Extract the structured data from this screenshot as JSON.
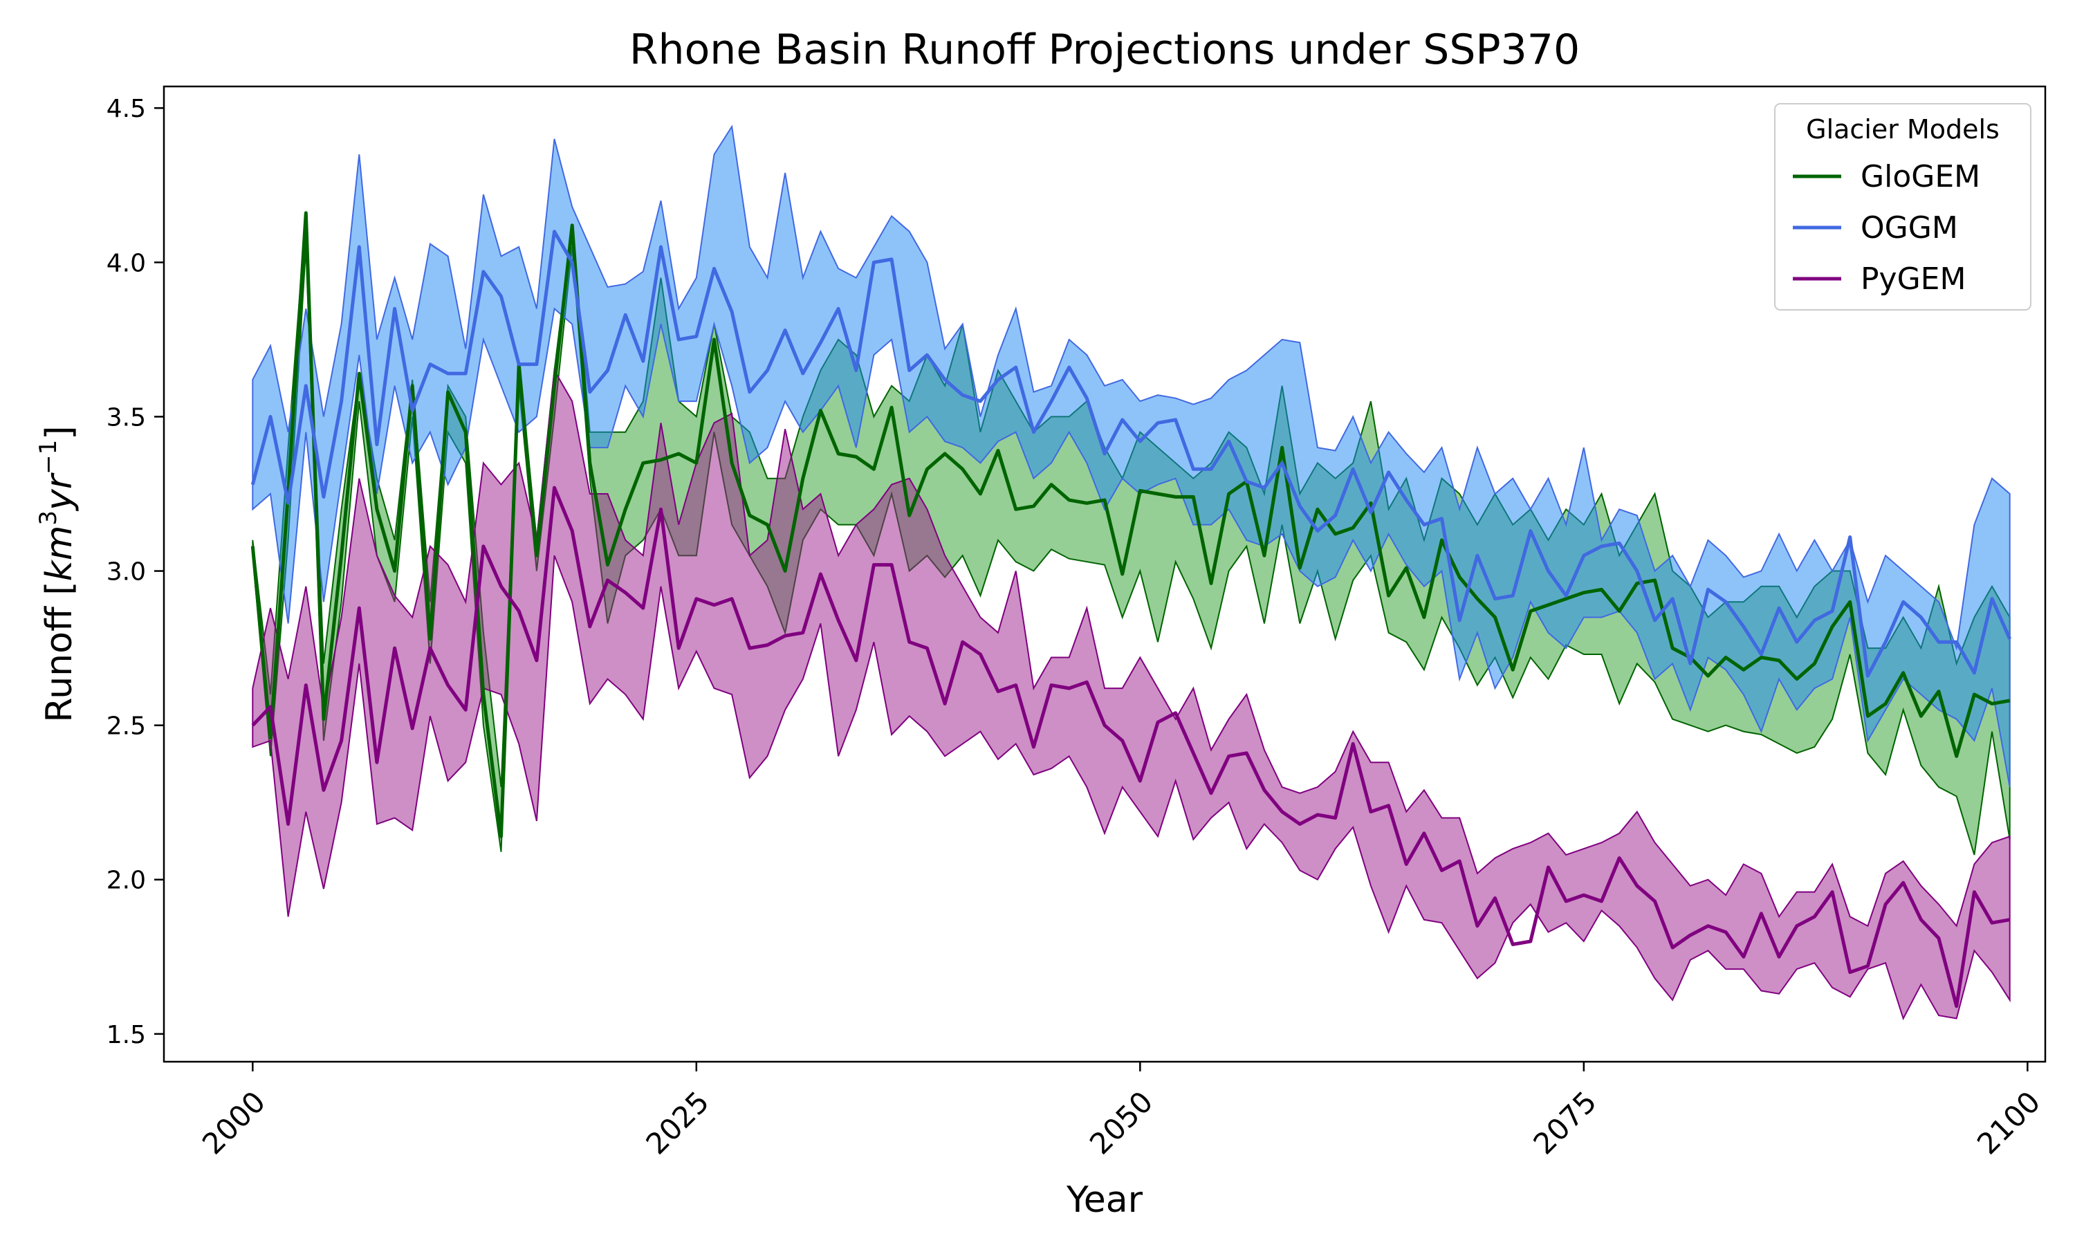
{
  "chart_data": {
    "type": "line",
    "title": "Rhone Basin Runoff Projections under SSP370",
    "xlabel": "Year",
    "ylabel_main": "Runoff [",
    "ylabel_unit_base": "km",
    "ylabel_unit_sup1": "3",
    "ylabel_unit_mid": "yr",
    "ylabel_unit_sup2": "−1",
    "ylabel_close": "]",
    "xlim": [
      1995,
      2101
    ],
    "ylim": [
      1.41,
      4.57
    ],
    "x_ticks": [
      2000,
      2025,
      2050,
      2075,
      2100
    ],
    "y_ticks": [
      1.5,
      2.0,
      2.5,
      3.0,
      3.5,
      4.0,
      4.5
    ],
    "y_tick_labels": [
      "1.5",
      "2.0",
      "2.5",
      "3.0",
      "3.5",
      "4.0",
      "4.5"
    ],
    "legend": {
      "title": "Glacier Models",
      "placement": "top-right"
    },
    "series": [
      {
        "name": "GloGEM",
        "line_color": "#006400",
        "fill_color": "#2ca02c",
        "x_start": 2000,
        "mean": [
          3.08,
          2.46,
          3.25,
          4.16,
          2.52,
          3.05,
          3.64,
          3.2,
          3.0,
          3.6,
          2.78,
          3.58,
          3.45,
          2.6,
          2.14,
          3.67,
          3.05,
          3.6,
          4.12,
          3.35,
          3.02,
          3.2,
          3.35,
          3.36,
          3.38,
          3.35,
          3.75,
          3.35,
          3.18,
          3.15,
          3.0,
          3.3,
          3.52,
          3.38,
          3.37,
          3.33,
          3.53,
          3.18,
          3.33,
          3.38,
          3.33,
          3.25,
          3.39,
          3.2,
          3.21,
          3.28,
          3.23,
          3.22,
          3.23,
          2.99,
          3.26,
          3.25,
          3.24,
          3.24,
          2.96,
          3.25,
          3.29,
          3.05,
          3.4,
          3.01,
          3.2,
          3.12,
          3.14,
          3.22,
          2.92,
          3.01,
          2.85,
          3.1,
          2.98,
          2.91,
          2.85,
          2.68,
          2.87,
          2.89,
          2.91,
          2.93,
          2.94,
          2.87,
          2.96,
          2.97,
          2.75,
          2.72,
          2.66,
          2.72,
          2.68,
          2.72,
          2.71,
          2.65,
          2.7,
          2.82,
          2.9,
          2.53,
          2.57,
          2.67,
          2.53,
          2.61,
          2.4,
          2.6,
          2.57,
          2.58
        ],
        "upper": [
          3.1,
          2.6,
          3.4,
          4.16,
          2.7,
          3.2,
          3.64,
          3.3,
          3.1,
          3.62,
          2.9,
          3.6,
          3.5,
          2.8,
          2.3,
          3.68,
          3.1,
          3.65,
          4.12,
          3.45,
          3.45,
          3.45,
          3.55,
          3.95,
          3.55,
          3.5,
          3.8,
          3.5,
          3.45,
          3.3,
          3.3,
          3.5,
          3.65,
          3.75,
          3.7,
          3.5,
          3.6,
          3.55,
          3.7,
          3.6,
          3.8,
          3.45,
          3.65,
          3.55,
          3.45,
          3.5,
          3.5,
          3.55,
          3.4,
          3.3,
          3.45,
          3.4,
          3.35,
          3.3,
          3.35,
          3.45,
          3.4,
          3.25,
          3.6,
          3.25,
          3.35,
          3.3,
          3.35,
          3.55,
          3.2,
          3.3,
          3.1,
          3.3,
          3.25,
          3.15,
          3.25,
          3.15,
          3.2,
          3.1,
          3.2,
          3.15,
          3.25,
          3.05,
          3.15,
          3.25,
          3.0,
          2.95,
          2.85,
          2.9,
          2.9,
          2.95,
          2.95,
          2.85,
          2.95,
          3.0,
          3.0,
          2.75,
          2.75,
          2.85,
          2.75,
          2.95,
          2.7,
          2.85,
          2.95,
          2.85
        ],
        "lower": [
          3.05,
          2.4,
          3.1,
          4.05,
          2.45,
          2.9,
          3.55,
          3.05,
          2.9,
          3.5,
          2.7,
          3.45,
          3.35,
          2.5,
          2.09,
          3.6,
          3.0,
          3.5,
          4.05,
          3.3,
          2.83,
          3.05,
          3.1,
          3.2,
          3.05,
          3.05,
          3.45,
          3.15,
          3.05,
          2.95,
          2.8,
          3.1,
          3.2,
          3.15,
          3.15,
          3.05,
          3.25,
          3.0,
          3.05,
          2.98,
          3.05,
          2.92,
          3.1,
          3.03,
          3.0,
          3.07,
          3.04,
          3.03,
          3.02,
          2.85,
          3.0,
          2.77,
          3.03,
          2.91,
          2.75,
          3.0,
          3.08,
          2.83,
          3.15,
          2.83,
          3.0,
          2.78,
          2.97,
          3.05,
          2.8,
          2.77,
          2.68,
          2.85,
          2.75,
          2.63,
          2.72,
          2.59,
          2.72,
          2.65,
          2.76,
          2.73,
          2.73,
          2.57,
          2.7,
          2.64,
          2.52,
          2.5,
          2.48,
          2.5,
          2.48,
          2.47,
          2.44,
          2.41,
          2.43,
          2.52,
          2.73,
          2.41,
          2.34,
          2.55,
          2.37,
          2.3,
          2.27,
          2.08,
          2.48,
          2.13
        ]
      },
      {
        "name": "OGGM",
        "line_color": "#4169e1",
        "fill_color": "#1e88f5",
        "x_start": 2000,
        "mean": [
          3.28,
          3.5,
          3.22,
          3.6,
          3.24,
          3.55,
          4.05,
          3.41,
          3.85,
          3.52,
          3.67,
          3.64,
          3.64,
          3.97,
          3.89,
          3.67,
          3.67,
          4.1,
          4.0,
          3.58,
          3.65,
          3.83,
          3.68,
          4.05,
          3.75,
          3.76,
          3.98,
          3.84,
          3.58,
          3.65,
          3.78,
          3.64,
          3.74,
          3.85,
          3.65,
          4.0,
          4.01,
          3.65,
          3.7,
          3.62,
          3.57,
          3.55,
          3.62,
          3.66,
          3.45,
          3.55,
          3.66,
          3.56,
          3.38,
          3.49,
          3.42,
          3.48,
          3.49,
          3.33,
          3.33,
          3.42,
          3.29,
          3.27,
          3.35,
          3.21,
          3.13,
          3.18,
          3.33,
          3.19,
          3.32,
          3.23,
          3.15,
          3.17,
          2.84,
          3.05,
          2.91,
          2.92,
          3.13,
          3.0,
          2.92,
          3.05,
          3.08,
          3.09,
          3.0,
          2.84,
          2.91,
          2.7,
          2.94,
          2.9,
          2.82,
          2.73,
          2.88,
          2.77,
          2.84,
          2.87,
          3.11,
          2.66,
          2.77,
          2.9,
          2.85,
          2.77,
          2.77,
          2.67,
          2.91,
          2.78
        ],
        "upper": [
          3.62,
          3.73,
          3.45,
          3.85,
          3.5,
          3.8,
          4.35,
          3.75,
          3.95,
          3.75,
          4.06,
          4.02,
          3.72,
          4.22,
          4.02,
          4.05,
          3.85,
          4.4,
          4.18,
          4.05,
          3.92,
          3.93,
          3.97,
          4.2,
          3.85,
          3.95,
          4.35,
          4.44,
          4.05,
          3.95,
          4.29,
          3.95,
          4.1,
          3.98,
          3.95,
          4.05,
          4.15,
          4.1,
          4.0,
          3.72,
          3.8,
          3.5,
          3.7,
          3.85,
          3.58,
          3.6,
          3.75,
          3.7,
          3.6,
          3.62,
          3.55,
          3.57,
          3.56,
          3.54,
          3.56,
          3.62,
          3.65,
          3.7,
          3.75,
          3.74,
          3.4,
          3.39,
          3.5,
          3.35,
          3.45,
          3.38,
          3.32,
          3.4,
          3.2,
          3.4,
          3.25,
          3.3,
          3.2,
          3.3,
          3.15,
          3.4,
          3.1,
          3.2,
          3.18,
          3.0,
          3.05,
          2.95,
          3.1,
          3.05,
          2.98,
          3.0,
          3.12,
          3.0,
          3.1,
          3.0,
          3.1,
          2.9,
          3.05,
          3.0,
          2.95,
          2.9,
          2.75,
          3.15,
          3.3,
          3.25
        ],
        "lower": [
          3.2,
          3.25,
          2.83,
          3.45,
          2.9,
          3.3,
          3.7,
          3.25,
          3.6,
          3.35,
          3.45,
          3.28,
          3.4,
          3.75,
          3.6,
          3.45,
          3.5,
          3.85,
          3.8,
          3.4,
          3.4,
          3.6,
          3.5,
          3.8,
          3.55,
          3.55,
          3.8,
          3.6,
          3.35,
          3.4,
          3.55,
          3.45,
          3.52,
          3.6,
          3.4,
          3.7,
          3.75,
          3.45,
          3.5,
          3.42,
          3.4,
          3.35,
          3.42,
          3.45,
          3.3,
          3.35,
          3.45,
          3.35,
          3.2,
          3.3,
          3.25,
          3.28,
          3.3,
          3.15,
          3.15,
          3.2,
          3.1,
          3.08,
          3.12,
          3.0,
          2.95,
          2.98,
          3.1,
          3.0,
          3.12,
          3.02,
          2.95,
          3.0,
          2.65,
          2.8,
          2.62,
          2.72,
          2.9,
          2.8,
          2.75,
          2.85,
          2.85,
          2.87,
          2.8,
          2.65,
          2.7,
          2.55,
          2.72,
          2.68,
          2.6,
          2.48,
          2.65,
          2.55,
          2.62,
          2.65,
          2.85,
          2.45,
          2.55,
          2.65,
          2.6,
          2.55,
          2.52,
          2.45,
          2.62,
          2.3
        ]
      },
      {
        "name": "PyGEM",
        "line_color": "#800080",
        "fill_color": "#9b1f8c",
        "x_start": 2000,
        "mean": [
          2.5,
          2.56,
          2.18,
          2.63,
          2.29,
          2.45,
          2.88,
          2.38,
          2.75,
          2.49,
          2.75,
          2.63,
          2.55,
          3.08,
          2.95,
          2.87,
          2.71,
          3.27,
          3.13,
          2.82,
          2.97,
          2.93,
          2.88,
          3.2,
          2.75,
          2.91,
          2.89,
          2.91,
          2.75,
          2.76,
          2.79,
          2.8,
          2.99,
          2.84,
          2.71,
          3.02,
          3.02,
          2.77,
          2.75,
          2.57,
          2.77,
          2.73,
          2.61,
          2.63,
          2.43,
          2.63,
          2.62,
          2.64,
          2.5,
          2.45,
          2.32,
          2.51,
          2.54,
          2.41,
          2.28,
          2.4,
          2.41,
          2.29,
          2.22,
          2.18,
          2.21,
          2.2,
          2.44,
          2.22,
          2.24,
          2.05,
          2.15,
          2.03,
          2.06,
          1.85,
          1.94,
          1.79,
          1.8,
          2.04,
          1.93,
          1.95,
          1.93,
          2.07,
          1.98,
          1.93,
          1.78,
          1.82,
          1.85,
          1.83,
          1.75,
          1.89,
          1.75,
          1.85,
          1.88,
          1.96,
          1.7,
          1.72,
          1.92,
          1.99,
          1.87,
          1.81,
          1.59,
          1.96,
          1.86,
          1.87
        ],
        "upper": [
          2.62,
          2.88,
          2.65,
          2.95,
          2.55,
          2.85,
          3.3,
          3.05,
          2.92,
          2.85,
          3.08,
          3.02,
          2.9,
          3.35,
          3.28,
          3.35,
          3.1,
          3.65,
          3.55,
          3.25,
          3.25,
          3.1,
          3.05,
          3.48,
          3.15,
          3.35,
          3.48,
          3.51,
          3.05,
          3.1,
          3.46,
          3.2,
          3.25,
          3.05,
          3.15,
          3.2,
          3.28,
          3.3,
          3.2,
          3.05,
          2.95,
          2.85,
          2.8,
          3.0,
          2.62,
          2.72,
          2.72,
          2.88,
          2.62,
          2.62,
          2.72,
          2.62,
          2.52,
          2.62,
          2.42,
          2.52,
          2.6,
          2.42,
          2.3,
          2.28,
          2.3,
          2.35,
          2.48,
          2.38,
          2.38,
          2.22,
          2.29,
          2.2,
          2.2,
          2.02,
          2.07,
          2.1,
          2.12,
          2.15,
          2.08,
          2.1,
          2.12,
          2.15,
          2.22,
          2.12,
          2.05,
          1.98,
          2.0,
          1.95,
          2.05,
          2.02,
          1.88,
          1.96,
          1.96,
          2.05,
          1.88,
          1.85,
          2.02,
          2.06,
          1.98,
          1.92,
          1.85,
          2.05,
          2.12,
          2.14
        ],
        "lower": [
          2.43,
          2.45,
          1.88,
          2.22,
          1.97,
          2.25,
          2.7,
          2.18,
          2.2,
          2.16,
          2.53,
          2.32,
          2.38,
          2.62,
          2.6,
          2.44,
          2.19,
          3.05,
          2.9,
          2.57,
          2.65,
          2.6,
          2.52,
          2.95,
          2.62,
          2.74,
          2.62,
          2.6,
          2.33,
          2.4,
          2.55,
          2.65,
          2.83,
          2.4,
          2.55,
          2.77,
          2.47,
          2.53,
          2.48,
          2.4,
          2.44,
          2.48,
          2.39,
          2.44,
          2.34,
          2.36,
          2.4,
          2.3,
          2.15,
          2.3,
          2.22,
          2.14,
          2.32,
          2.13,
          2.2,
          2.25,
          2.1,
          2.18,
          2.12,
          2.03,
          2.0,
          2.1,
          2.17,
          1.98,
          1.83,
          1.98,
          1.87,
          1.86,
          1.77,
          1.68,
          1.73,
          1.86,
          1.92,
          1.83,
          1.86,
          1.8,
          1.9,
          1.85,
          1.78,
          1.68,
          1.61,
          1.74,
          1.77,
          1.71,
          1.71,
          1.64,
          1.63,
          1.71,
          1.73,
          1.65,
          1.62,
          1.71,
          1.73,
          1.55,
          1.66,
          1.56,
          1.55,
          1.77,
          1.7,
          1.61
        ]
      }
    ]
  }
}
